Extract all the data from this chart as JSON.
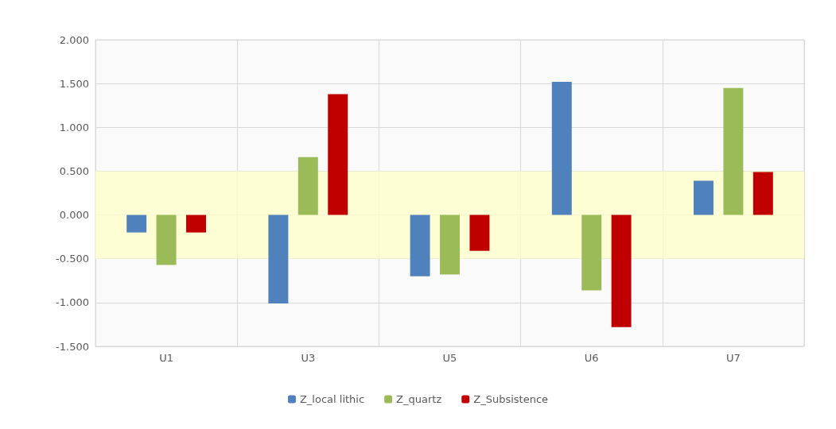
{
  "chart_data": {
    "type": "bar",
    "categories": [
      "U1",
      "U3",
      "U5",
      "U6",
      "U7"
    ],
    "series": [
      {
        "name": "Z_local lithic",
        "color": "#4f81bd",
        "values": [
          -0.2,
          -1.01,
          -0.7,
          1.52,
          0.39
        ]
      },
      {
        "name": "Z_quartz",
        "color": "#9bbb59",
        "values": [
          -0.57,
          0.66,
          -0.68,
          -0.86,
          1.45
        ]
      },
      {
        "name": "Z_Subsistence",
        "color": "#c00000",
        "values": [
          -0.2,
          1.38,
          -0.41,
          -1.28,
          0.49
        ]
      }
    ],
    "ylim": [
      -1.5,
      2
    ],
    "yticks": [
      {
        "value": -1.5,
        "label": "-1.500"
      },
      {
        "value": -1,
        "label": "-1.000"
      },
      {
        "value": -0.5,
        "label": "-0.500"
      },
      {
        "value": 0,
        "label": "0.000"
      },
      {
        "value": 0.5,
        "label": "0.500"
      },
      {
        "value": 1,
        "label": "1.000"
      },
      {
        "value": 1.5,
        "label": "1.500"
      },
      {
        "value": 2,
        "label": "2.000"
      }
    ],
    "bands": [
      {
        "axis": "y",
        "from": -0.5,
        "to": 0.5,
        "color": "#ffffcc"
      }
    ],
    "grid": true,
    "legend": "bottom"
  }
}
